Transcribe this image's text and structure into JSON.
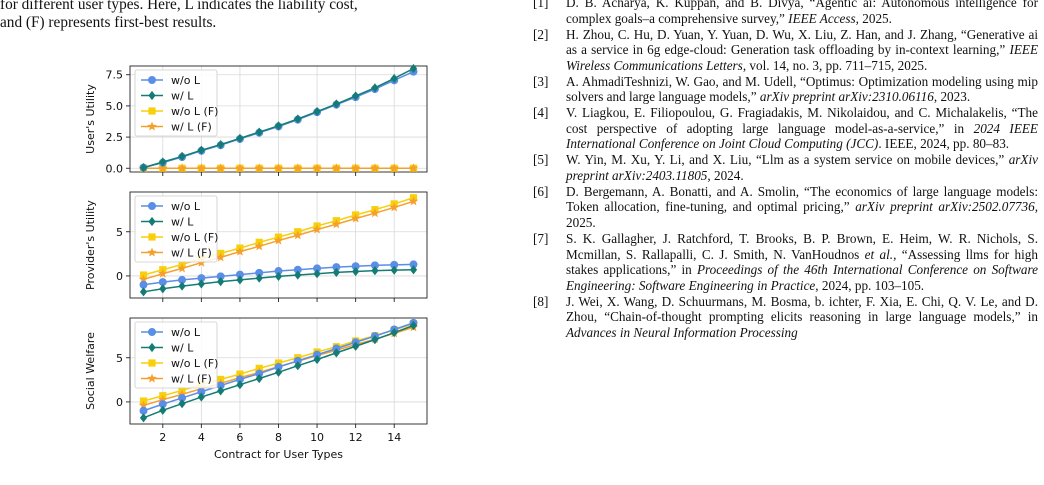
{
  "left_text": {
    "line1": "for different user types. Here, L indicates the liability cost,",
    "line2": "and (F) represents first-best results."
  },
  "chart_data": [
    {
      "type": "line",
      "ylabel": "User's Utility",
      "xlabel": "",
      "ylim": [
        -0.3,
        8.2
      ],
      "yticks": [
        0.0,
        2.5,
        5.0,
        7.5
      ],
      "ytick_labels": [
        "0.0",
        "2.5",
        "5.0",
        "7.5"
      ],
      "xlim": [
        0.3,
        15.7
      ],
      "legend": "top-left",
      "x": [
        1,
        2,
        3,
        4,
        5,
        6,
        7,
        8,
        9,
        10,
        11,
        12,
        13,
        14,
        15
      ],
      "series": [
        {
          "name": "w/o L",
          "color": "#5b8ee6",
          "marker": "circle",
          "values": [
            0.05,
            0.45,
            0.9,
            1.4,
            1.85,
            2.35,
            2.85,
            3.35,
            3.9,
            4.5,
            5.1,
            5.7,
            6.35,
            7.05,
            7.75
          ]
        },
        {
          "name": "w/ L",
          "color": "#137c74",
          "marker": "diamond",
          "values": [
            0.05,
            0.5,
            0.95,
            1.45,
            1.9,
            2.4,
            2.9,
            3.4,
            3.95,
            4.55,
            5.15,
            5.8,
            6.45,
            7.2,
            8.0
          ]
        },
        {
          "name": "w/o L (F)",
          "color": "#f7cf0a",
          "marker": "square",
          "values": [
            0,
            0,
            0,
            0,
            0,
            0,
            0,
            0,
            0,
            0,
            0,
            0,
            0,
            0,
            0
          ]
        },
        {
          "name": "w/ L (F)",
          "color": "#f5a02c",
          "marker": "star",
          "values": [
            0,
            0,
            0,
            0,
            0,
            0,
            0,
            0,
            0,
            0,
            0,
            0,
            0,
            0,
            0
          ]
        }
      ]
    },
    {
      "type": "line",
      "ylabel": "Provider's Utility",
      "xlabel": "",
      "ylim": [
        -2.5,
        9.5
      ],
      "yticks": [
        0,
        5
      ],
      "ytick_labels": [
        "0",
        "5"
      ],
      "xlim": [
        0.3,
        15.7
      ],
      "legend": "top-left",
      "x": [
        1,
        2,
        3,
        4,
        5,
        6,
        7,
        8,
        9,
        10,
        11,
        12,
        13,
        14,
        15
      ],
      "series": [
        {
          "name": "w/o L",
          "color": "#5b8ee6",
          "marker": "circle",
          "values": [
            -1.0,
            -0.7,
            -0.45,
            -0.25,
            -0.05,
            0.15,
            0.35,
            0.55,
            0.7,
            0.85,
            1.0,
            1.1,
            1.2,
            1.25,
            1.3
          ]
        },
        {
          "name": "w/ L",
          "color": "#137c74",
          "marker": "diamond",
          "values": [
            -1.8,
            -1.45,
            -1.15,
            -0.9,
            -0.65,
            -0.45,
            -0.25,
            -0.05,
            0.1,
            0.25,
            0.4,
            0.5,
            0.6,
            0.65,
            0.7
          ]
        },
        {
          "name": "w/o L (F)",
          "color": "#f7cf0a",
          "marker": "square",
          "values": [
            0.1,
            0.7,
            1.3,
            1.95,
            2.55,
            3.15,
            3.8,
            4.4,
            5.0,
            5.65,
            6.25,
            6.9,
            7.5,
            8.15,
            8.85
          ]
        },
        {
          "name": "w/ L (F)",
          "color": "#f5a02c",
          "marker": "star",
          "values": [
            -0.4,
            0.25,
            0.85,
            1.5,
            2.1,
            2.75,
            3.35,
            4.0,
            4.6,
            5.25,
            5.85,
            6.5,
            7.1,
            7.75,
            8.45
          ]
        }
      ]
    },
    {
      "type": "line",
      "ylabel": "Social Welfare",
      "xlabel": "Contract for User Types",
      "ylim": [
        -2.5,
        9.5
      ],
      "yticks": [
        0,
        5
      ],
      "ytick_labels": [
        "0",
        "5"
      ],
      "xlim": [
        0.3,
        15.7
      ],
      "xticks": [
        2,
        4,
        6,
        8,
        10,
        12,
        14
      ],
      "xtick_labels": [
        "2",
        "4",
        "6",
        "8",
        "10",
        "12",
        "14"
      ],
      "legend": "top-left",
      "x": [
        1,
        2,
        3,
        4,
        5,
        6,
        7,
        8,
        9,
        10,
        11,
        12,
        13,
        14,
        15
      ],
      "series": [
        {
          "name": "w/o L",
          "color": "#5b8ee6",
          "marker": "circle",
          "values": [
            -1.0,
            -0.25,
            0.45,
            1.15,
            1.85,
            2.55,
            3.2,
            3.95,
            4.65,
            5.35,
            6.05,
            6.75,
            7.45,
            8.2,
            8.95
          ]
        },
        {
          "name": "w/ L",
          "color": "#137c74",
          "marker": "diamond",
          "values": [
            -1.8,
            -0.95,
            -0.2,
            0.55,
            1.25,
            1.95,
            2.65,
            3.35,
            4.1,
            4.8,
            5.55,
            6.3,
            7.05,
            7.85,
            8.65
          ]
        },
        {
          "name": "w/o L (F)",
          "color": "#f7cf0a",
          "marker": "square",
          "values": [
            0.1,
            0.7,
            1.3,
            1.95,
            2.55,
            3.15,
            3.8,
            4.4,
            5.0,
            5.65,
            6.25,
            6.9,
            7.5,
            8.15,
            8.85
          ]
        },
        {
          "name": "w/ L (F)",
          "color": "#f5a02c",
          "marker": "star",
          "values": [
            -0.4,
            0.25,
            0.85,
            1.5,
            2.1,
            2.75,
            3.35,
            4.0,
            4.6,
            5.25,
            5.85,
            6.5,
            7.1,
            7.75,
            8.45
          ]
        }
      ]
    }
  ],
  "references": [
    {
      "num": "[1]",
      "parts": [
        {
          "t": "D. B. Acharya, K. Kuppan, and B. Divya, “Agentic ai: Autonomous intelligence for complex goals–a comprehensive survey,” "
        },
        {
          "t": "IEEE Access",
          "i": true
        },
        {
          "t": ", 2025."
        }
      ]
    },
    {
      "num": "[2]",
      "parts": [
        {
          "t": "H. Zhou, C. Hu, D. Yuan, Y. Yuan, D. Wu, X. Liu, Z. Han, and J. Zhang, “Generative ai as a service in 6g edge-cloud: Generation task offloading by in-context learning,” "
        },
        {
          "t": "IEEE Wireless Communications Letters",
          "i": true
        },
        {
          "t": ", vol. 14, no. 3, pp. 711–715, 2025."
        }
      ]
    },
    {
      "num": "[3]",
      "parts": [
        {
          "t": "A. AhmadiTeshnizi, W. Gao, and M. Udell, “Optimus: Optimization modeling using mip solvers and large language models,” "
        },
        {
          "t": "arXiv preprint arXiv:2310.06116",
          "i": true
        },
        {
          "t": ", 2023."
        }
      ]
    },
    {
      "num": "[4]",
      "parts": [
        {
          "t": "V. Liagkou, E. Filiopoulou, G. Fragiadakis, M. Nikolaidou, and C. Michalakelis, “The cost perspective of adopting large language model-as-a-service,” in "
        },
        {
          "t": "2024 IEEE International Conference on Joint Cloud Computing (JCC)",
          "i": true
        },
        {
          "t": ".   IEEE, 2024, pp. 80–83."
        }
      ]
    },
    {
      "num": "[5]",
      "parts": [
        {
          "t": "W. Yin, M. Xu, Y. Li, and X. Liu, “Llm as a system service on mobile devices,” "
        },
        {
          "t": "arXiv preprint arXiv:2403.11805",
          "i": true
        },
        {
          "t": ", 2024."
        }
      ]
    },
    {
      "num": "[6]",
      "parts": [
        {
          "t": "D. Bergemann, A. Bonatti, and A. Smolin, “The economics of large language models: Token allocation, fine-tuning, and optimal pricing,” "
        },
        {
          "t": "arXiv preprint arXiv:2502.07736",
          "i": true
        },
        {
          "t": ", 2025."
        }
      ]
    },
    {
      "num": "[7]",
      "parts": [
        {
          "t": "S. K. Gallagher, J. Ratchford, T. Brooks, B. P. Brown, E. Heim, W. R. Nichols, S. Mcmillan, S. Rallapalli, C. J. Smith, N. VanHoudnos "
        },
        {
          "t": "et al.",
          "i": true
        },
        {
          "t": ", “Assessing llms for high stakes applications,” in "
        },
        {
          "t": "Proceedings of the 46th International Conference on Software Engineering: Software Engineering in Practice",
          "i": true
        },
        {
          "t": ", 2024, pp. 103–105."
        }
      ]
    },
    {
      "num": "[8]",
      "parts": [
        {
          "t": "J. Wei, X. Wang, D. Schuurmans, M. Bosma, b. ichter, F. Xia, E. Chi, Q. V. Le, and D. Zhou, “Chain-of-thought prompting elicits reasoning in large language models,” in "
        },
        {
          "t": "Advances in Neural Information Processing",
          "i": true
        }
      ]
    }
  ]
}
